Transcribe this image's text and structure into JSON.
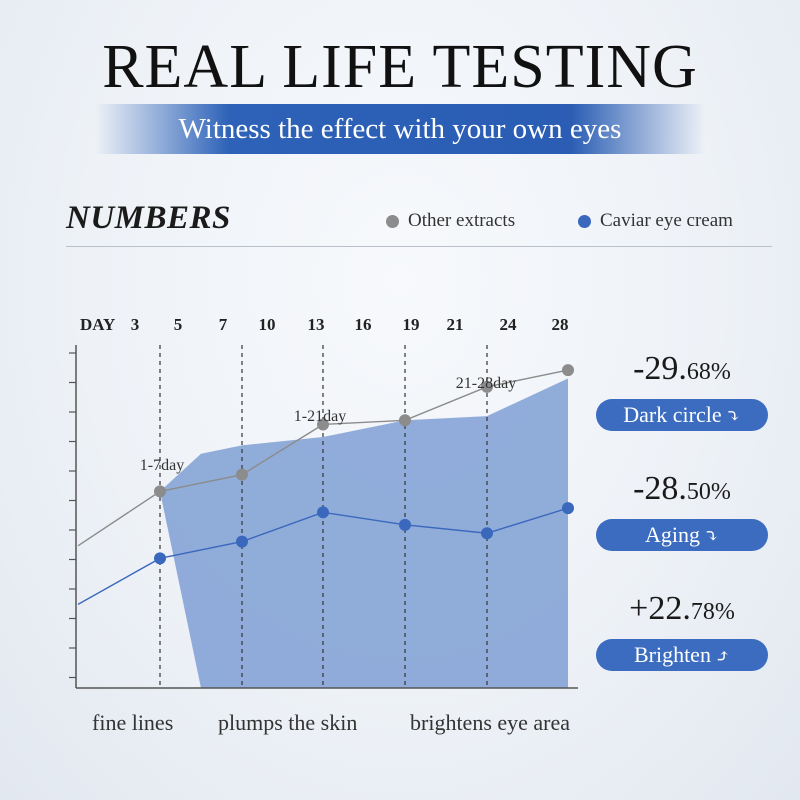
{
  "header": {
    "title": "REAL LIFE TESTING",
    "subtitle": "Witness the effect with your own eyes"
  },
  "section": {
    "heading": "NUMBERS"
  },
  "legend": {
    "other": {
      "label": "Other extracts",
      "color": "#8c8c8c"
    },
    "caviar": {
      "label": "Caviar eye cream",
      "color": "#3a68bd"
    }
  },
  "chart_data": {
    "type": "line",
    "x_prefix": "DAY",
    "day_ticks": [
      "3",
      "5",
      "7",
      "10",
      "13",
      "16",
      "19",
      "21",
      "24",
      "28"
    ],
    "markers": [
      {
        "day_index": 1,
        "label": "1-7day"
      },
      {
        "day_index": 4,
        "label": "1-21day"
      },
      {
        "day_index": 7,
        "label": "21-28day"
      }
    ],
    "series": [
      {
        "name": "Other extracts",
        "color": "#8c8c8c",
        "points": [
          [
            0,
            18
          ],
          [
            1,
            31
          ],
          [
            3,
            35
          ],
          [
            4,
            47
          ],
          [
            6,
            48
          ],
          [
            8,
            56
          ],
          [
            10,
            60
          ]
        ]
      },
      {
        "name": "Caviar eye cream",
        "color": "#3a68bd",
        "points": [
          [
            0,
            4
          ],
          [
            1,
            15
          ],
          [
            3,
            19
          ],
          [
            4,
            26
          ],
          [
            6,
            23
          ],
          [
            8,
            21
          ],
          [
            10,
            27
          ]
        ]
      }
    ],
    "area": {
      "color": "#7f9fd3",
      "points": [
        [
          1,
          31
        ],
        [
          2,
          40
        ],
        [
          3,
          42
        ],
        [
          4,
          44
        ],
        [
          6,
          48
        ],
        [
          8,
          49
        ],
        [
          10,
          58
        ],
        [
          10,
          -16
        ],
        [
          2,
          -16
        ]
      ]
    },
    "y_range": [
      -16,
      66
    ],
    "categories": [
      "fine lines",
      "plumps the skin",
      "brightens eye area"
    ]
  },
  "stats": [
    {
      "int": "-29.",
      "dec": "68%",
      "label": "Dark circle",
      "arrow": "⤵"
    },
    {
      "int": "-28.",
      "dec": "50%",
      "label": "Aging",
      "arrow": "⤵"
    },
    {
      "int": "+22.",
      "dec": "78%",
      "label": "Brighten",
      "arrow": "⤴"
    }
  ]
}
